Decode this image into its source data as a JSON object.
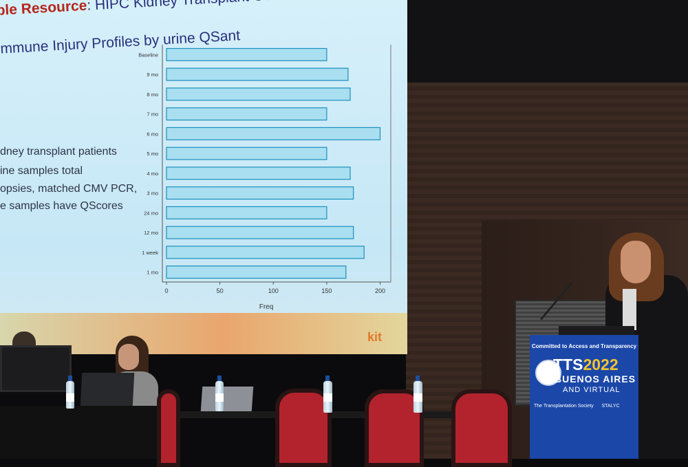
{
  "slide": {
    "title_highlight": "ple Resource",
    "title_rest": ": HIPC Kidney Transplant Cohorts Profiled",
    "subtitle": "Immune Injury Profiles by urine QSant",
    "bullets": [
      "dney transplant patients",
      "ine samples total",
      "opsies, matched CMV PCR,",
      "e samples have QScores"
    ],
    "logo": "kit"
  },
  "chart_data": {
    "type": "bar",
    "orientation": "horizontal",
    "categories": [
      "Baseline",
      "9 mo",
      "8 mo",
      "7 mo",
      "6 mo",
      "5 mo",
      "4 mo",
      "3 mo",
      "24 mo",
      "12 mo",
      "1 week",
      "1 mo"
    ],
    "values": [
      150,
      170,
      172,
      150,
      200,
      150,
      172,
      175,
      150,
      175,
      185,
      168
    ],
    "xlabel": "Freq",
    "xticks": [
      0,
      50,
      100,
      150,
      200
    ],
    "xlim": [
      0,
      210
    ],
    "bar_color": "#a9dff0",
    "bar_edge": "#1b8fbd",
    "grid": false
  },
  "podium": {
    "committed": "Committed to Access and Transparency",
    "tts": "TTS",
    "year": "2022",
    "city": "BUENOS AIRES",
    "virtual": "AND VIRTUAL",
    "logos": [
      "The Transplantation Society",
      "STALYC"
    ]
  }
}
